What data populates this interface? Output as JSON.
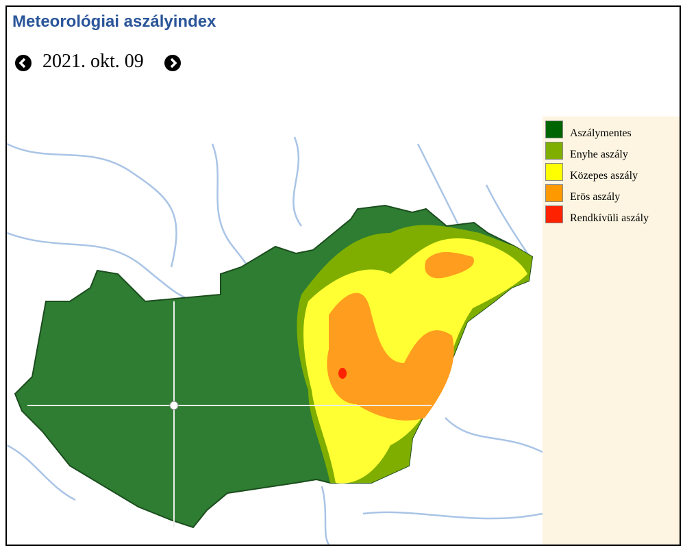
{
  "header": {
    "title": "Meteorológiai aszályindex",
    "date": "2021. okt. 09"
  },
  "legend": [
    {
      "label": "Aszálymentes",
      "color": "#006400"
    },
    {
      "label": "Enyhe aszály",
      "color": "#7fae00"
    },
    {
      "label": "Közepes aszály",
      "color": "#ffff00"
    },
    {
      "label": "Erös aszály",
      "color": "#ff9900"
    },
    {
      "label": "Rendkívüli aszály",
      "color": "#ff2200"
    }
  ]
}
